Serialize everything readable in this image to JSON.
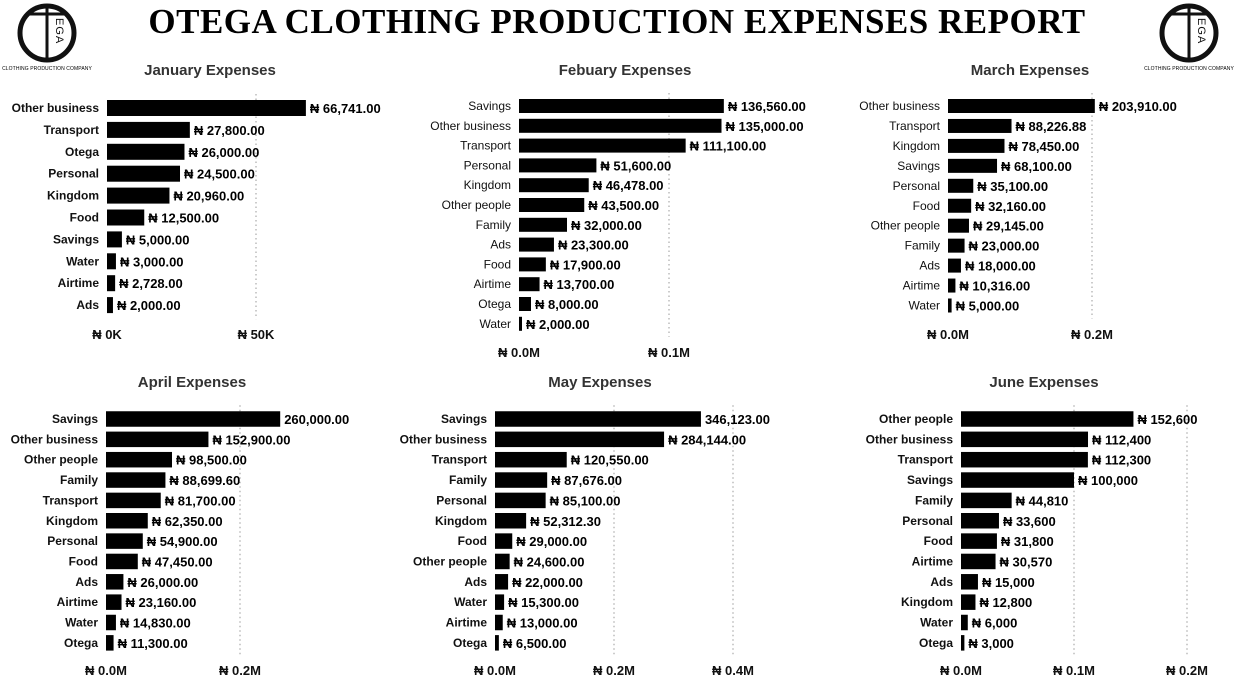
{
  "report": {
    "title": "OTEGA CLOTHING PRODUCTION EXPENSES REPORT",
    "logo_text": "OTEGA",
    "logo_caption": "CLOTHING PRODUCTION COMPANY"
  },
  "style": {
    "bar_color": "#000000",
    "title_color": "#333333",
    "grid": "dotted vertical"
  },
  "chart_data": [
    {
      "type": "bar",
      "orientation": "horizontal",
      "title": "January Expenses",
      "categories": [
        "Other business",
        "Transport",
        "Otega",
        "Personal",
        "Kingdom",
        "Food",
        "Savings",
        "Water",
        "Airtime",
        "Ads"
      ],
      "values": [
        66741,
        27800,
        26000,
        24500,
        20960,
        12500,
        5000,
        3000,
        2728,
        2000
      ],
      "value_labels": [
        "₦ 66,741.00",
        "₦ 27,800.00",
        "₦ 26,000.00",
        "₦ 24,500.00",
        "₦ 20,960.00",
        "₦ 12,500.00",
        "₦ 5,000.00",
        "₦ 3,000.00",
        "₦ 2,728.00",
        "₦ 2,000.00"
      ],
      "xlim": [
        0,
        50000
      ],
      "xticks": [
        0,
        50000
      ],
      "xtick_labels": [
        "₦ 0K",
        "₦ 50K"
      ],
      "label_weight": "bold"
    },
    {
      "type": "bar",
      "orientation": "horizontal",
      "title": "Febuary Expenses",
      "categories": [
        "Savings",
        "Other business",
        "Transport",
        "Personal",
        "Kingdom",
        "Other people",
        "Family",
        "Ads",
        "Food",
        "Airtime",
        "Otega",
        "Water"
      ],
      "values": [
        136560,
        135000,
        111100,
        51600,
        46478,
        43500,
        32000,
        23300,
        17900,
        13700,
        8000,
        2000
      ],
      "value_labels": [
        "₦ 136,560.00",
        "₦ 135,000.00",
        "₦ 111,100.00",
        "₦ 51,600.00",
        "₦ 46,478.00",
        "₦ 43,500.00",
        "₦ 32,000.00",
        "₦ 23,300.00",
        "₦ 17,900.00",
        "₦ 13,700.00",
        "₦ 8,000.00",
        "₦ 2,000.00"
      ],
      "xlim": [
        0,
        100000
      ],
      "xticks": [
        0,
        100000
      ],
      "xtick_labels": [
        "₦ 0.0M",
        "₦ 0.1M"
      ],
      "label_weight": "normal"
    },
    {
      "type": "bar",
      "orientation": "horizontal",
      "title": "March Expenses",
      "categories": [
        "Other business",
        "Transport",
        "Kingdom",
        "Savings",
        "Personal",
        "Food",
        "Other people",
        "Family",
        "Ads",
        "Airtime",
        "Water"
      ],
      "values": [
        203910,
        88226.88,
        78450,
        68100,
        35100,
        32160,
        29145,
        23000,
        18000,
        10316,
        5000
      ],
      "value_labels": [
        "₦ 203,910.00",
        "₦ 88,226.88",
        "₦ 78,450.00",
        "₦ 68,100.00",
        "₦ 35,100.00",
        "₦ 32,160.00",
        "₦ 29,145.00",
        "₦ 23,000.00",
        "₦ 18,000.00",
        "₦ 10,316.00",
        "₦ 5,000.00"
      ],
      "xlim": [
        0,
        200000
      ],
      "xticks": [
        0,
        200000
      ],
      "xtick_labels": [
        "₦ 0.0M",
        "₦ 0.2M"
      ],
      "label_weight": "normal"
    },
    {
      "type": "bar",
      "orientation": "horizontal",
      "title": "April Expenses",
      "categories": [
        "Savings",
        "Other business",
        "Other people",
        "Family",
        "Transport",
        "Kingdom",
        "Personal",
        "Food",
        "Ads",
        "Airtime",
        "Water",
        "Otega"
      ],
      "values": [
        260000,
        152900,
        98500,
        88699.6,
        81700,
        62350,
        54900,
        47450,
        26000,
        23160,
        14830,
        11300
      ],
      "value_labels": [
        "260,000.00",
        "₦ 152,900.00",
        "₦ 98,500.00",
        "₦ 88,699.60",
        "₦ 81,700.00",
        "₦ 62,350.00",
        "₦ 54,900.00",
        "₦ 47,450.00",
        "₦ 26,000.00",
        "₦ 23,160.00",
        "₦ 14,830.00",
        "₦ 11,300.00"
      ],
      "xlim": [
        0,
        200000
      ],
      "xticks": [
        0,
        200000
      ],
      "xtick_labels": [
        "₦ 0.0M",
        "₦ 0.2M"
      ],
      "label_weight": "bold"
    },
    {
      "type": "bar",
      "orientation": "horizontal",
      "title": "May Expenses",
      "categories": [
        "Savings",
        "Other business",
        "Transport",
        "Family",
        "Personal",
        "Kingdom",
        "Food",
        "Other people",
        "Ads",
        "Water",
        "Airtime",
        "Otega"
      ],
      "values": [
        346123,
        284144,
        120550,
        87676,
        85100,
        52312.3,
        29000,
        24600,
        22000,
        15300,
        13000,
        6500
      ],
      "value_labels": [
        "346,123.00",
        "₦ 284,144.00",
        "₦ 120,550.00",
        "₦ 87,676.00",
        "₦ 85,100.00",
        "₦ 52,312.30",
        "₦ 29,000.00",
        "₦ 24,600.00",
        "₦ 22,000.00",
        "₦ 15,300.00",
        "₦ 13,000.00",
        "₦ 6,500.00"
      ],
      "xlim": [
        0,
        400000
      ],
      "xticks": [
        0,
        200000,
        400000
      ],
      "xtick_labels": [
        "₦ 0.0M",
        "₦ 0.2M",
        "₦ 0.4M"
      ],
      "label_weight": "bold"
    },
    {
      "type": "bar",
      "orientation": "horizontal",
      "title": "June Expenses",
      "categories": [
        "Other people",
        "Other business",
        "Transport",
        "Savings",
        "Family",
        "Personal",
        "Food",
        "Airtime",
        "Ads",
        "Kingdom",
        "Water",
        "Otega"
      ],
      "values": [
        152600,
        112400,
        112300,
        100000,
        44810,
        33600,
        31800,
        30570,
        15000,
        12800,
        6000,
        3000
      ],
      "value_labels": [
        "₦ 152,600",
        "₦ 112,400",
        "₦ 112,300",
        "₦ 100,000",
        "₦ 44,810",
        "₦ 33,600",
        "₦ 31,800",
        "₦ 30,570",
        "₦ 15,000",
        "₦ 12,800",
        "₦ 6,000",
        "₦ 3,000"
      ],
      "xlim": [
        0,
        200000
      ],
      "xticks": [
        0,
        100000,
        200000
      ],
      "xtick_labels": [
        "₦ 0.0M",
        "₦ 0.1M",
        "₦ 0.2M"
      ],
      "label_weight": "bold"
    }
  ]
}
